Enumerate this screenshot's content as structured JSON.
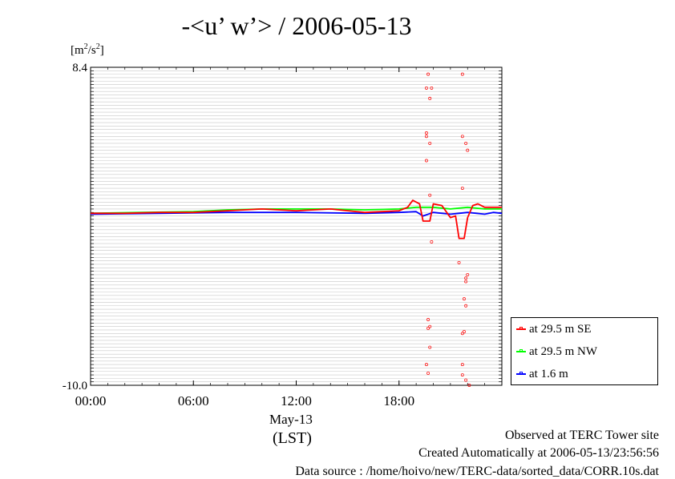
{
  "title": "-<u’ w’> / 2006-05-13",
  "unit": {
    "base": "[m",
    "sup1": "2",
    "mid": "/s",
    "sup2": "2",
    "end": "]"
  },
  "chart_data": {
    "type": "line",
    "title": "-<u’ w’> / 2006-05-13",
    "ylabel": "[m2/s2]",
    "xlabel": "May-13",
    "x_unit_label": "(LST)",
    "x_range_hours": [
      0,
      24
    ],
    "ylim": [
      -10.0,
      8.4
    ],
    "x_ticks": [
      "00:00",
      "06:00",
      "12:00",
      "18:00"
    ],
    "y_ticks_visible": [
      "8.4",
      "-10.0"
    ],
    "grid": true,
    "legend_position": "bottom-right",
    "series": [
      {
        "name": "at 29.5 m SE",
        "color": "#ff0000",
        "line": [
          [
            0,
            -0.05
          ],
          [
            2,
            -0.05
          ],
          [
            4,
            0.0
          ],
          [
            6,
            0.0
          ],
          [
            8,
            0.1
          ],
          [
            9,
            0.15
          ],
          [
            10,
            0.2
          ],
          [
            11,
            0.15
          ],
          [
            12,
            0.1
          ],
          [
            13,
            0.15
          ],
          [
            14,
            0.2
          ],
          [
            15,
            0.1
          ],
          [
            16,
            0.0
          ],
          [
            17,
            0.05
          ],
          [
            18,
            0.1
          ],
          [
            18.5,
            0.3
          ],
          [
            18.8,
            0.7
          ],
          [
            19.2,
            0.5
          ],
          [
            19.4,
            -0.5
          ],
          [
            19.8,
            -0.5
          ],
          [
            20.0,
            0.5
          ],
          [
            20.5,
            0.4
          ],
          [
            21.0,
            -0.3
          ],
          [
            21.3,
            -0.2
          ],
          [
            21.5,
            -1.5
          ],
          [
            21.8,
            -1.5
          ],
          [
            22.0,
            -0.3
          ],
          [
            22.3,
            0.4
          ],
          [
            22.6,
            0.5
          ],
          [
            23.0,
            0.3
          ],
          [
            23.5,
            0.3
          ],
          [
            24,
            0.3
          ]
        ],
        "scatter": [
          [
            19.7,
            8.0
          ],
          [
            19.6,
            7.2
          ],
          [
            19.9,
            7.2
          ],
          [
            19.8,
            6.6
          ],
          [
            21.7,
            8.0
          ],
          [
            19.6,
            4.6
          ],
          [
            19.6,
            4.4
          ],
          [
            21.7,
            4.4
          ],
          [
            19.8,
            4.0
          ],
          [
            21.9,
            4.0
          ],
          [
            22.0,
            3.6
          ],
          [
            19.6,
            3.0
          ],
          [
            21.7,
            1.4
          ],
          [
            19.8,
            1.0
          ],
          [
            19.9,
            -1.7
          ],
          [
            21.5,
            -2.9
          ],
          [
            21.9,
            -3.8
          ],
          [
            22.0,
            -3.6
          ],
          [
            21.9,
            -4.0
          ],
          [
            21.8,
            -5.0
          ],
          [
            21.9,
            -5.4
          ],
          [
            19.7,
            -6.2
          ],
          [
            19.8,
            -6.6
          ],
          [
            19.7,
            -6.7
          ],
          [
            21.8,
            -6.9
          ],
          [
            21.7,
            -7.0
          ],
          [
            19.8,
            -7.8
          ],
          [
            19.6,
            -8.8
          ],
          [
            21.7,
            -8.8
          ],
          [
            19.7,
            -9.3
          ],
          [
            21.7,
            -9.4
          ],
          [
            21.9,
            -9.7
          ],
          [
            22.1,
            -10.0
          ]
        ]
      },
      {
        "name": "at 29.5 m NW",
        "color": "#00ff00",
        "line": [
          [
            0,
            -0.05
          ],
          [
            3,
            0.0
          ],
          [
            6,
            0.05
          ],
          [
            8,
            0.15
          ],
          [
            10,
            0.2
          ],
          [
            12,
            0.2
          ],
          [
            14,
            0.2
          ],
          [
            16,
            0.15
          ],
          [
            18,
            0.2
          ],
          [
            19,
            0.3
          ],
          [
            20,
            0.3
          ],
          [
            21,
            0.2
          ],
          [
            22,
            0.3
          ],
          [
            23,
            0.2
          ],
          [
            24,
            0.2
          ]
        ]
      },
      {
        "name": "at 1.6 m",
        "color": "#0000ff",
        "line": [
          [
            0,
            -0.1
          ],
          [
            4,
            -0.05
          ],
          [
            8,
            0.0
          ],
          [
            12,
            0.0
          ],
          [
            16,
            -0.05
          ],
          [
            18,
            0.0
          ],
          [
            19,
            0.05
          ],
          [
            19.4,
            -0.2
          ],
          [
            20,
            0.0
          ],
          [
            21,
            -0.1
          ],
          [
            21.5,
            -0.05
          ],
          [
            22,
            0.0
          ],
          [
            23,
            -0.1
          ],
          [
            23.5,
            0.0
          ],
          [
            24,
            -0.05
          ]
        ]
      }
    ]
  },
  "footer": {
    "line1": "Observed at TERC Tower site",
    "line2": "Created Automatically at 2006-05-13/23:56:56",
    "line3": "Data source : /home/hoivo/new/TERC-data/sorted_data/CORR.10s.dat"
  }
}
